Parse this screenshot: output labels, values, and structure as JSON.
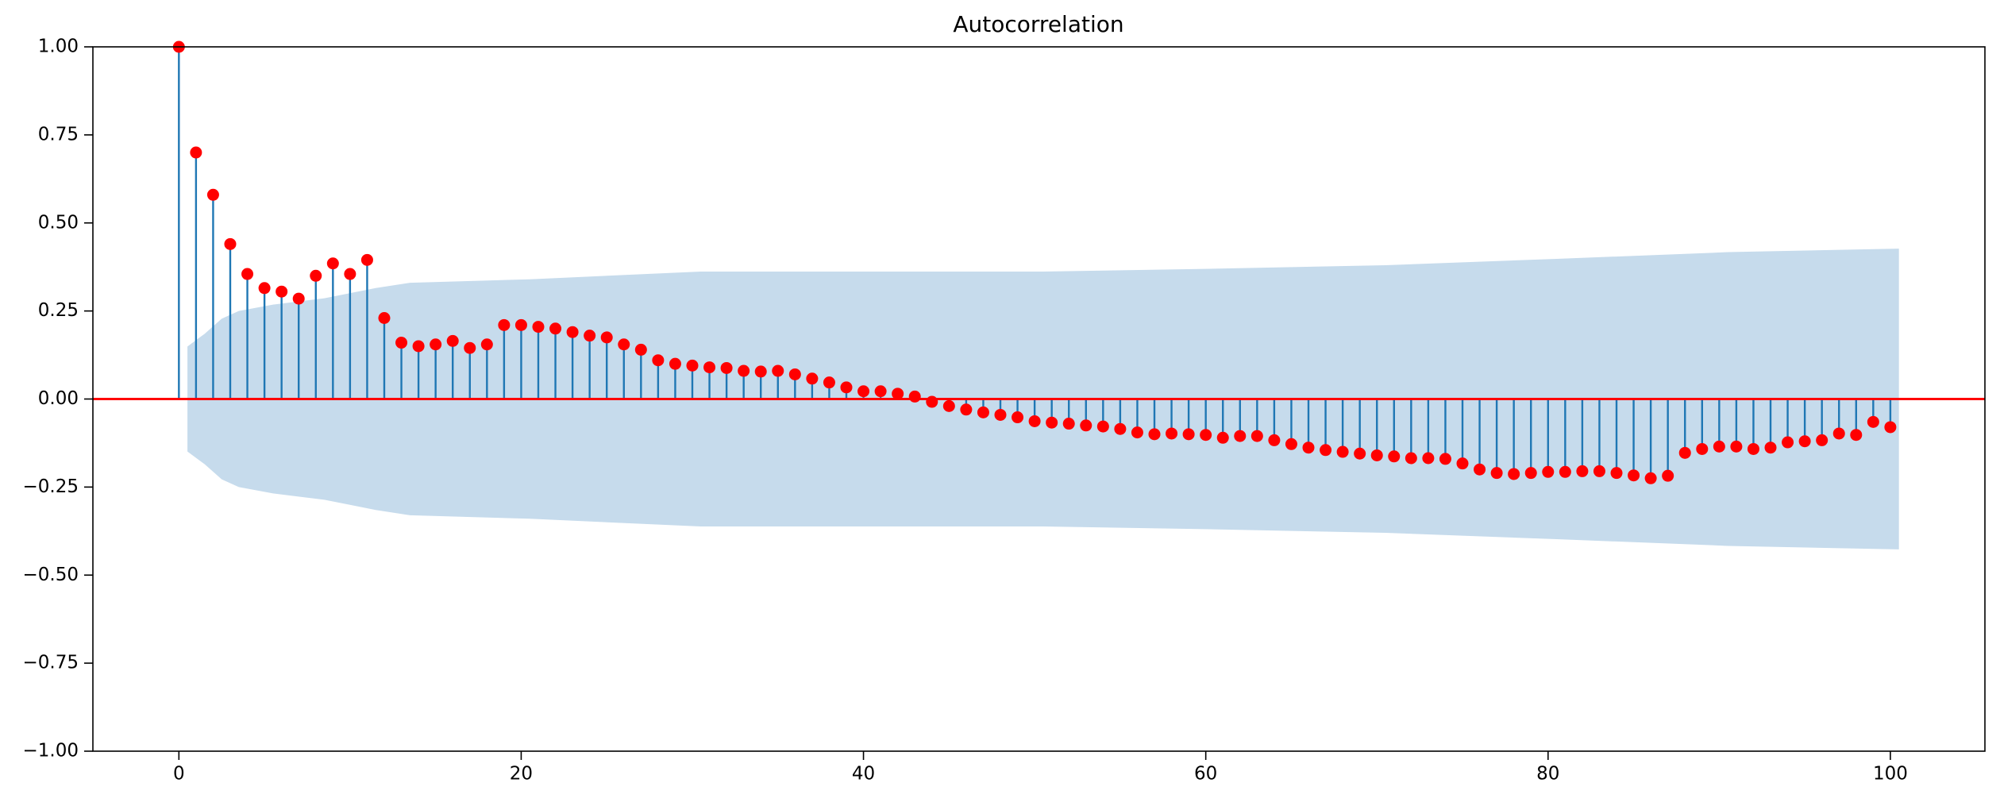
{
  "chart_data": {
    "type": "stem",
    "title": "Autocorrelation",
    "x": [
      0,
      1,
      2,
      3,
      4,
      5,
      6,
      7,
      8,
      9,
      10,
      11,
      12,
      13,
      14,
      15,
      16,
      17,
      18,
      19,
      20,
      21,
      22,
      23,
      24,
      25,
      26,
      27,
      28,
      29,
      30,
      31,
      32,
      33,
      34,
      35,
      36,
      37,
      38,
      39,
      40,
      41,
      42,
      43,
      44,
      45,
      46,
      47,
      48,
      49,
      50,
      51,
      52,
      53,
      54,
      55,
      56,
      57,
      58,
      59,
      60,
      61,
      62,
      63,
      64,
      65,
      66,
      67,
      68,
      69,
      70,
      71,
      72,
      73,
      74,
      75,
      76,
      77,
      78,
      79,
      80,
      81,
      82,
      83,
      84,
      85,
      86,
      87,
      88,
      89,
      90,
      91,
      92,
      93,
      94,
      95,
      96,
      97,
      98,
      99,
      100
    ],
    "values": [
      1.0,
      0.7,
      0.58,
      0.44,
      0.355,
      0.315,
      0.305,
      0.285,
      0.35,
      0.385,
      0.355,
      0.395,
      0.23,
      0.16,
      0.15,
      0.155,
      0.165,
      0.145,
      0.155,
      0.21,
      0.21,
      0.205,
      0.2,
      0.19,
      0.18,
      0.175,
      0.155,
      0.14,
      0.11,
      0.1,
      0.095,
      0.09,
      0.088,
      0.08,
      0.078,
      0.08,
      0.07,
      0.058,
      0.047,
      0.033,
      0.022,
      0.022,
      0.015,
      0.007,
      -0.008,
      -0.02,
      -0.03,
      -0.038,
      -0.045,
      -0.052,
      -0.063,
      -0.067,
      -0.07,
      -0.075,
      -0.078,
      -0.085,
      -0.095,
      -0.1,
      -0.098,
      -0.1,
      -0.102,
      -0.11,
      -0.105,
      -0.105,
      -0.117,
      -0.128,
      -0.138,
      -0.145,
      -0.15,
      -0.155,
      -0.16,
      -0.163,
      -0.168,
      -0.168,
      -0.17,
      -0.183,
      -0.2,
      -0.21,
      -0.213,
      -0.21,
      -0.207,
      -0.207,
      -0.205,
      -0.205,
      -0.21,
      -0.217,
      -0.225,
      -0.218,
      -0.153,
      -0.142,
      -0.135,
      -0.135,
      -0.142,
      -0.138,
      -0.123,
      -0.12,
      -0.117,
      -0.098,
      -0.102,
      -0.065,
      -0.08
    ],
    "stem_color": "#1f77b4",
    "marker_color": "#ff0000",
    "band": {
      "x": [
        0.5,
        1.5,
        2.5,
        3.5,
        5.5,
        8.5,
        11.5,
        13.5,
        20.5,
        30.5,
        40.5,
        50.5,
        60.5,
        70.5,
        80.5,
        90.5,
        100.5
      ],
      "upper": [
        0.149,
        0.185,
        0.228,
        0.25,
        0.268,
        0.286,
        0.315,
        0.33,
        0.34,
        0.362,
        0.362,
        0.362,
        0.37,
        0.38,
        0.398,
        0.417,
        0.427
      ],
      "lower": [
        -0.149,
        -0.185,
        -0.228,
        -0.25,
        -0.268,
        -0.286,
        -0.315,
        -0.33,
        -0.34,
        -0.362,
        -0.362,
        -0.362,
        -0.37,
        -0.38,
        -0.398,
        -0.417,
        -0.427
      ],
      "color": "#c6dbec"
    },
    "zero_line": 0,
    "zero_line_color": "#ff0000",
    "xlim": [
      -5.025,
      105.525
    ],
    "xticks": [
      0,
      20,
      40,
      60,
      80,
      100
    ],
    "ylim": [
      -1,
      1
    ],
    "yticks": [
      {
        "value": -1,
        "label": "−1.00"
      },
      {
        "value": -0.75,
        "label": "−0.75"
      },
      {
        "value": -0.5,
        "label": "−0.50"
      },
      {
        "value": -0.25,
        "label": "−0.25"
      },
      {
        "value": 0,
        "label": "0.00"
      },
      {
        "value": 0.25,
        "label": "0.25"
      },
      {
        "value": 0.5,
        "label": "0.50"
      },
      {
        "value": 0.75,
        "label": "0.75"
      },
      {
        "value": 1,
        "label": "1.00"
      }
    ]
  }
}
